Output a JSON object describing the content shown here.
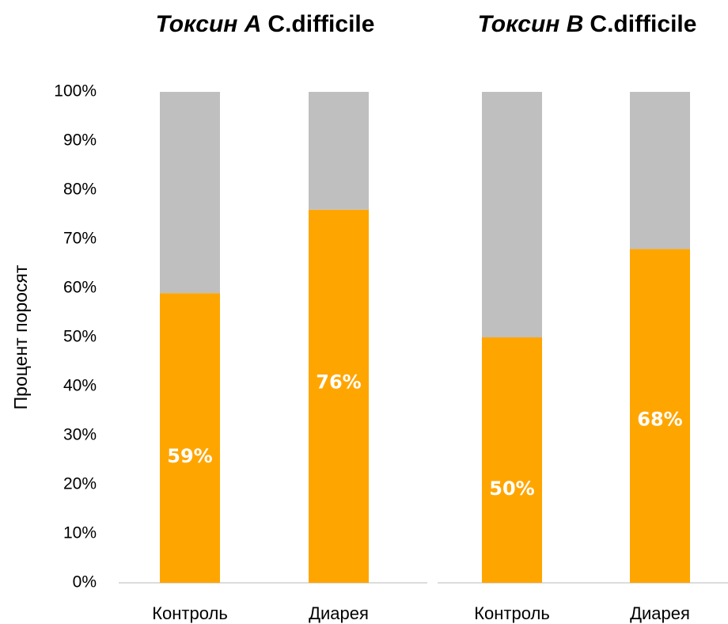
{
  "chart_data": [
    {
      "type": "stacked_bar",
      "title": [
        "Токсин A",
        "C.difficile"
      ],
      "ylabel": "Процент поросят",
      "categories": [
        "Контроль",
        "Диарея"
      ],
      "series": [
        {
          "color": "#FFA500",
          "values": [
            59,
            76
          ],
          "value_labels": [
            "59%",
            "76%"
          ]
        },
        {
          "color": "#BFBFBF",
          "values": [
            41,
            24
          ]
        }
      ],
      "ylim": [
        0,
        100
      ],
      "yticks": [
        {
          "value": 0,
          "label": "0%"
        },
        {
          "value": 10,
          "label": "10%"
        },
        {
          "value": 20,
          "label": "20%"
        },
        {
          "value": 30,
          "label": "30%"
        },
        {
          "value": 40,
          "label": "40%"
        },
        {
          "value": 50,
          "label": "50%"
        },
        {
          "value": 60,
          "label": "60%"
        },
        {
          "value": 70,
          "label": "70%"
        },
        {
          "value": 80,
          "label": "80%"
        },
        {
          "value": 90,
          "label": "90%"
        },
        {
          "value": 100,
          "label": "100%"
        }
      ]
    },
    {
      "type": "stacked_bar",
      "title": [
        "Токсин B",
        "C.difficile"
      ],
      "categories": [
        "Контроль",
        "Диарея"
      ],
      "series": [
        {
          "color": "#FFA500",
          "values": [
            50,
            68
          ],
          "value_labels": [
            "50%",
            "68%"
          ]
        },
        {
          "color": "#BFBFBF",
          "values": [
            50,
            32
          ]
        }
      ],
      "ylim": [
        0,
        100
      ]
    }
  ]
}
